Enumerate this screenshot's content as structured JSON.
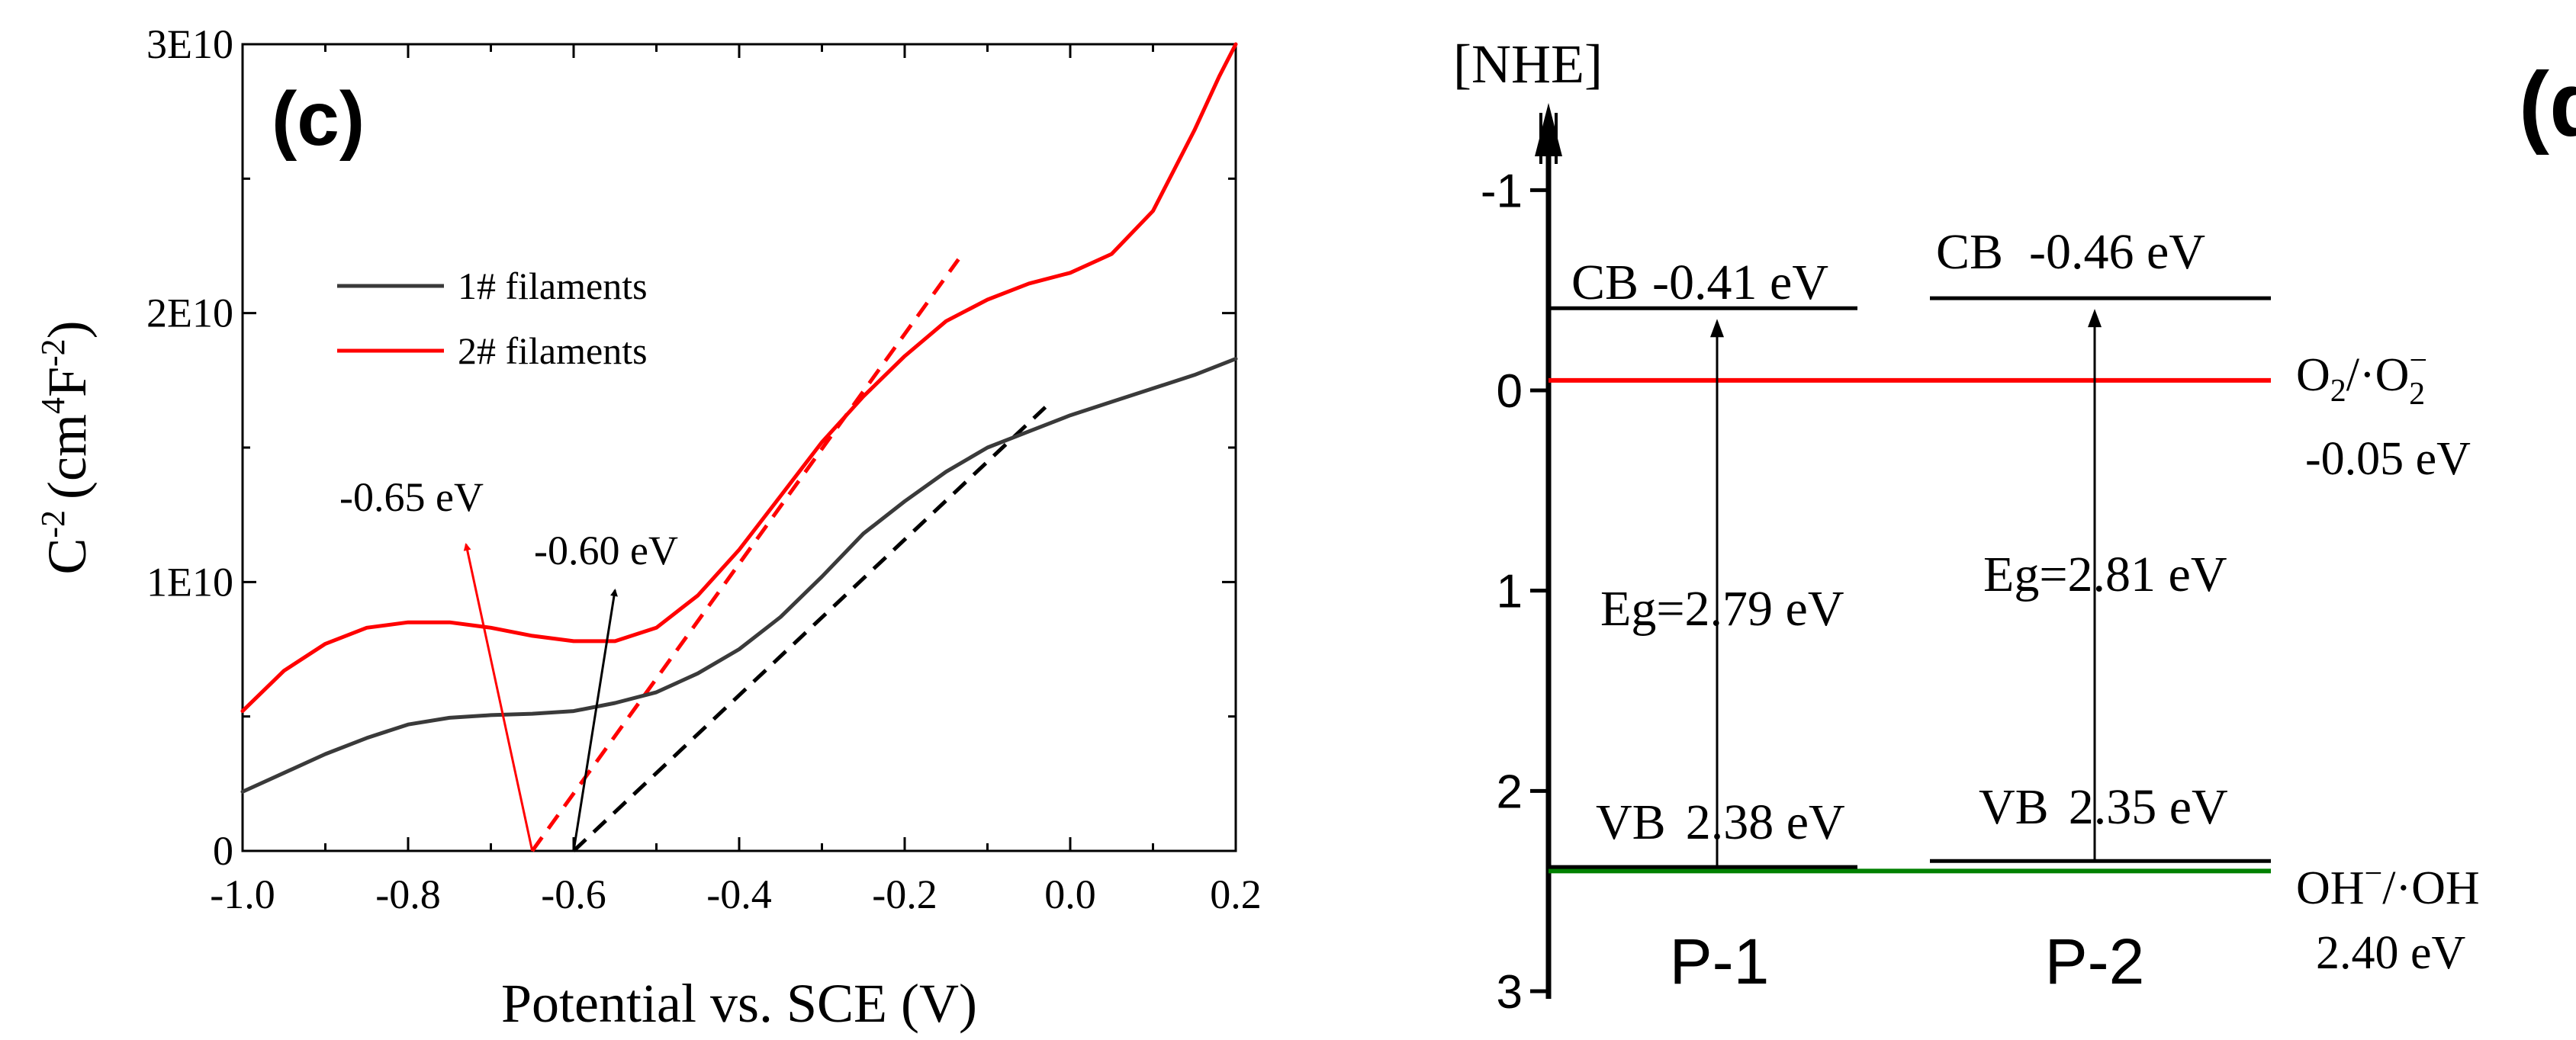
{
  "chart_data": [
    {
      "panel_label": "(c)",
      "type": "line",
      "xlabel": "Potential vs. SCE (V)",
      "ylabel_main": "C",
      "ylabel_main_sup": "-2",
      "ylabel_unit_open": "(cm",
      "ylabel_unit_sup1": "4",
      "ylabel_unit_mid": "F",
      "ylabel_unit_sup2": "-2",
      "ylabel_unit_close": ")",
      "xlim": [
        -1.0,
        0.2
      ],
      "ylim": [
        0,
        30000000000
      ],
      "xticks": [
        -1.0,
        -0.8,
        -0.6,
        -0.4,
        -0.2,
        0.0,
        0.2
      ],
      "xtick_labels": [
        "-1.0",
        "-0.8",
        "-0.6",
        "-0.4",
        "-0.2",
        "0.0",
        "0.2"
      ],
      "yticks": [
        0,
        10000000000,
        20000000000,
        30000000000
      ],
      "ytick_labels": [
        "0",
        "1E10",
        "2E10",
        "3E10"
      ],
      "series": [
        {
          "name": "1# filaments",
          "color": "#3a3a3a",
          "x": [
            -1.0,
            -0.95,
            -0.9,
            -0.85,
            -0.8,
            -0.75,
            -0.7,
            -0.65,
            -0.6,
            -0.55,
            -0.5,
            -0.45,
            -0.4,
            -0.35,
            -0.3,
            -0.25,
            -0.2,
            -0.15,
            -0.1,
            -0.05,
            0.0,
            0.05,
            0.1,
            0.15,
            0.2
          ],
          "y": [
            2200000000,
            2900000000,
            3600000000,
            4200000000,
            4700000000,
            4950000000,
            5050000000,
            5100000000,
            5200000000,
            5500000000,
            5900000000,
            6600000000,
            7500000000,
            8700000000,
            10200000000,
            11800000000,
            13000000000,
            14100000000,
            15000000000,
            15600000000,
            16200000000,
            16700000000,
            17200000000,
            17700000000,
            18300000000
          ]
        },
        {
          "name": "2# filaments",
          "color": "#ff0000",
          "x": [
            -1.0,
            -0.95,
            -0.9,
            -0.85,
            -0.8,
            -0.75,
            -0.7,
            -0.65,
            -0.6,
            -0.55,
            -0.5,
            -0.45,
            -0.4,
            -0.35,
            -0.3,
            -0.25,
            -0.2,
            -0.15,
            -0.1,
            -0.05,
            0.0,
            0.05,
            0.1,
            0.15,
            0.18,
            0.2
          ],
          "y": [
            5200000000,
            6700000000,
            7700000000,
            8300000000,
            8500000000,
            8500000000,
            8300000000,
            8000000000,
            7800000000,
            7800000000,
            8300000000,
            9500000000,
            11200000000,
            13200000000,
            15200000000,
            16900000000,
            18400000000,
            19700000000,
            20500000000,
            21100000000,
            21500000000,
            22200000000,
            23800000000,
            26800000000,
            28800000000,
            30000000000
          ]
        }
      ],
      "fit_lines": [
        {
          "series": "2# filaments",
          "color": "#ff0000",
          "x": [
            -0.65,
            -0.135
          ],
          "y": [
            0,
            22000000000
          ]
        },
        {
          "series": "1# filaments",
          "color": "#000000",
          "x": [
            -0.6,
            -0.03
          ],
          "y": [
            0,
            16500000000
          ]
        }
      ],
      "annotations": [
        {
          "text": "-0.65 eV",
          "color": "#ff0000",
          "target_x": -0.65,
          "target_y": 0,
          "at_x": -0.73,
          "at_y": 11400000000
        },
        {
          "text": "-0.60 eV",
          "color": "#000000",
          "target_x": -0.6,
          "target_y": 0,
          "at_x": -0.55,
          "at_y": 9700000000
        }
      ],
      "legend_position": "upper-left"
    },
    {
      "panel_label": "(d)",
      "type": "energy-level diagram",
      "axis_title": "[NHE]",
      "ylim": [
        -1.5,
        3
      ],
      "yticks": [
        -1,
        0,
        1,
        2,
        3
      ],
      "ytick_labels": [
        "-1",
        "0",
        "1",
        "2",
        "3"
      ],
      "samples": [
        {
          "name": "P-1",
          "cb_label": "CB",
          "cb_value": -0.41,
          "cb_text": "-0.41 eV",
          "vb_label": "VB",
          "vb_value": 2.38,
          "vb_text": "2.38 eV",
          "bandgap_text": "Eg=2.79 eV"
        },
        {
          "name": "P-2",
          "cb_label": "CB",
          "cb_value": -0.46,
          "cb_text": "-0.46 eV",
          "vb_label": "VB",
          "vb_value": 2.35,
          "vb_text": "2.35 eV",
          "bandgap_text": "Eg=2.81 eV"
        }
      ],
      "redox_levels": [
        {
          "label_main": "O",
          "label_sub": "2",
          "label_mid": "/·O",
          "label_sup": "−",
          "label_sub2": "2",
          "value": -0.05,
          "value_text": "-0.05 eV",
          "color": "#ff0000"
        },
        {
          "label_main": "OH",
          "label_sup": "−",
          "label_rest": "/·OH",
          "value": 2.4,
          "value_text": "2.40 eV",
          "color": "#008000"
        }
      ]
    }
  ]
}
